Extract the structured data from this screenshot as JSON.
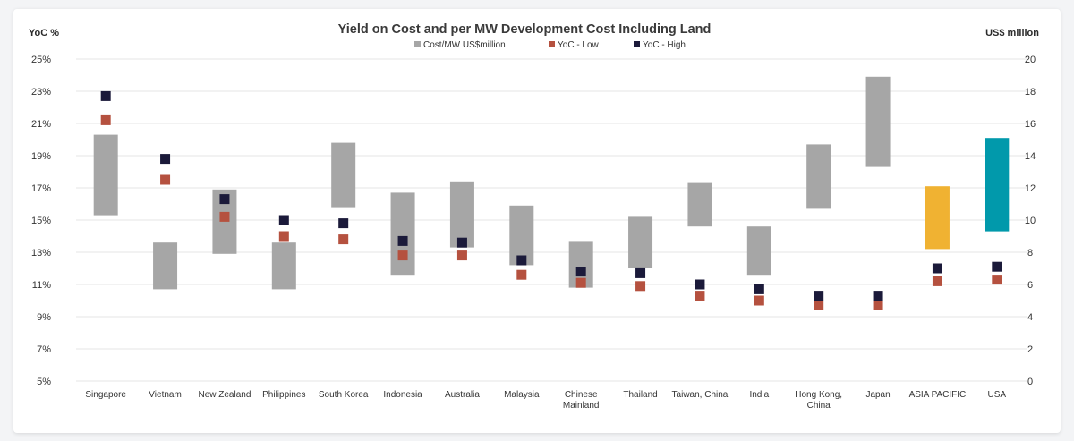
{
  "chart_data": {
    "type": "bar",
    "title": "Yield on Cost and per MW Development Cost Including Land",
    "ylabel": "YoC %",
    "y2label": "US$ million",
    "ylim": [
      5,
      25
    ],
    "y2lim": [
      0,
      20
    ],
    "yticks": [
      "5%",
      "7%",
      "9%",
      "11%",
      "13%",
      "15%",
      "17%",
      "19%",
      "21%",
      "23%",
      "25%"
    ],
    "y2ticks": [
      "0",
      "2",
      "4",
      "6",
      "8",
      "10",
      "12",
      "14",
      "16",
      "18",
      "20"
    ],
    "legend": [
      {
        "label": "Cost/MW US$million",
        "color": "#a6a6a6"
      },
      {
        "label": "YoC - Low",
        "color": "#b5513f"
      },
      {
        "label": "YoC - High",
        "color": "#1b1a3a"
      }
    ],
    "categories": [
      [
        "Singapore"
      ],
      [
        "Vietnam"
      ],
      [
        "New Zealand"
      ],
      [
        "Philippines"
      ],
      [
        "South Korea"
      ],
      [
        "Indonesia"
      ],
      [
        "Australia"
      ],
      [
        "Malaysia"
      ],
      [
        "Chinese",
        "Mainland"
      ],
      [
        "Thailand"
      ],
      [
        "Taiwan, China"
      ],
      [
        "India"
      ],
      [
        "Hong Kong,",
        "China"
      ],
      [
        "Japan"
      ],
      [
        "ASIA PACIFIC"
      ],
      [
        "USA"
      ]
    ],
    "series": [
      {
        "name": "Cost/MW US$million (low)",
        "axis": "right",
        "values": [
          10.3,
          5.7,
          7.9,
          5.7,
          10.8,
          6.6,
          8.3,
          7.2,
          5.8,
          7.0,
          9.6,
          6.6,
          10.7,
          13.3,
          8.2,
          9.3
        ]
      },
      {
        "name": "Cost/MW US$million (high)",
        "axis": "right",
        "values": [
          15.3,
          8.6,
          11.9,
          8.6,
          14.8,
          11.7,
          12.4,
          10.9,
          8.7,
          10.2,
          12.3,
          9.6,
          14.7,
          18.9,
          12.1,
          15.1
        ]
      },
      {
        "name": "YoC - Low",
        "axis": "left",
        "values": [
          21.2,
          17.5,
          15.2,
          14.0,
          13.8,
          12.8,
          12.8,
          11.6,
          11.1,
          10.9,
          10.3,
          10.0,
          9.7,
          9.7,
          11.2,
          11.3
        ]
      },
      {
        "name": "YoC - High",
        "axis": "left",
        "values": [
          22.7,
          18.8,
          16.3,
          15.0,
          14.8,
          13.7,
          13.6,
          12.5,
          11.8,
          11.7,
          11.0,
          10.7,
          10.3,
          10.3,
          12.0,
          12.1
        ]
      }
    ],
    "bar_colors": [
      "#a6a6a6",
      "#a6a6a6",
      "#a6a6a6",
      "#a6a6a6",
      "#a6a6a6",
      "#a6a6a6",
      "#a6a6a6",
      "#a6a6a6",
      "#a6a6a6",
      "#a6a6a6",
      "#a6a6a6",
      "#a6a6a6",
      "#a6a6a6",
      "#a6a6a6",
      "#f0b232",
      "#0199ab"
    ],
    "low_color": "#b5513f",
    "high_color": "#1b1a3a",
    "grid_color": "#e4e4e4"
  }
}
